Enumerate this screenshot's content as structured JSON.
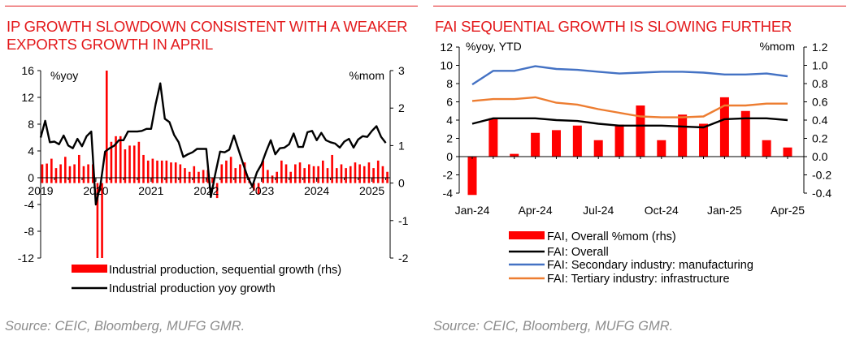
{
  "colors": {
    "accent": "#e31a1c",
    "bar": "#ff0000",
    "line_black": "#000000",
    "line_blue": "#4472c4",
    "line_orange": "#ed7d31",
    "source_gray": "#8c8c8c"
  },
  "left_panel": {
    "title": "IP GROWTH SLOWDOWN CONSISTENT WITH A WEAKER EXPORTS GROWTH IN APRIL",
    "source": "Source: CEIC, Bloomberg, MUFG GMR."
  },
  "right_panel": {
    "title": "FAI SEQUENTIAL GROWTH IS SLOWING FURTHER",
    "source": "Source: CEIC, Bloomberg, MUFG GMR."
  },
  "chart_data": [
    {
      "type": "bar+line",
      "title": "IP GROWTH SLOWDOWN CONSISTENT WITH A WEAKER EXPORTS GROWTH IN APRIL",
      "left_axis_label": "%yoy",
      "right_axis_label": "%mom",
      "ylim_left": [
        -12,
        16
      ],
      "yticks_left": [
        "-12",
        "-8",
        "-4",
        "0",
        "4",
        "8",
        "12",
        "16"
      ],
      "ylim_right": [
        -2,
        3
      ],
      "yticks_right": [
        "-2",
        "-1",
        "0",
        "1",
        "2",
        "3"
      ],
      "xlim": [
        2019.0,
        2025.33
      ],
      "year_ticks": [
        "2019",
        "2020",
        "2021",
        "2022",
        "2023",
        "2024",
        "2025"
      ],
      "grid": false,
      "legend_position": "bottom",
      "bar_series": {
        "name": "Industrial production, sequential growth (rhs)",
        "axis": "right",
        "x": [
          2019.0,
          2019.083,
          2019.167,
          2019.25,
          2019.333,
          2019.417,
          2019.5,
          2019.583,
          2019.667,
          2019.75,
          2019.833,
          2019.917,
          2020.0,
          2020.083,
          2020.167,
          2020.25,
          2020.333,
          2020.417,
          2020.5,
          2020.583,
          2020.667,
          2020.75,
          2020.833,
          2020.917,
          2021.0,
          2021.083,
          2021.167,
          2021.25,
          2021.333,
          2021.417,
          2021.5,
          2021.583,
          2021.667,
          2021.75,
          2021.833,
          2021.917,
          2022.0,
          2022.083,
          2022.167,
          2022.25,
          2022.333,
          2022.417,
          2022.5,
          2022.583,
          2022.667,
          2022.75,
          2022.833,
          2022.917,
          2023.0,
          2023.083,
          2023.167,
          2023.25,
          2023.333,
          2023.417,
          2023.5,
          2023.583,
          2023.667,
          2023.75,
          2023.833,
          2023.917,
          2024.0,
          2024.083,
          2024.167,
          2024.25,
          2024.333,
          2024.417,
          2024.5,
          2024.583,
          2024.667,
          2024.75,
          2024.833,
          2024.917,
          2025.0,
          2025.083,
          2025.167,
          2025.25
        ],
        "values": [
          0.5,
          0.52,
          0.65,
          0.4,
          0.5,
          0.7,
          0.45,
          0.5,
          0.75,
          0.45,
          0.5,
          0.5,
          -2.0,
          -2.0,
          3.0,
          1.1,
          1.25,
          1.25,
          0.9,
          1.0,
          1.0,
          1.1,
          0.75,
          0.6,
          0.65,
          0.6,
          0.6,
          0.6,
          0.55,
          0.55,
          0.5,
          0.4,
          0.3,
          0.45,
          0.3,
          0.35,
          0.35,
          0.15,
          -0.4,
          0.5,
          0.6,
          0.7,
          0.4,
          0.5,
          0.55,
          0.15,
          -0.2,
          -0.3,
          0.6,
          0.35,
          0.2,
          0.3,
          0.6,
          0.5,
          0.3,
          0.5,
          0.55,
          0.4,
          0.5,
          0.45,
          0.45,
          0.6,
          0.4,
          0.75,
          0.4,
          0.5,
          0.4,
          0.45,
          0.55,
          0.5,
          0.45,
          0.55,
          0.4,
          0.6,
          0.45,
          0.3
        ]
      },
      "line_series": {
        "name": "Industrial production yoy growth",
        "axis": "left",
        "x": [
          2019.0,
          2019.083,
          2019.167,
          2019.25,
          2019.333,
          2019.417,
          2019.5,
          2019.583,
          2019.667,
          2019.75,
          2019.833,
          2019.917,
          2020.0,
          2020.083,
          2020.167,
          2020.25,
          2020.333,
          2020.417,
          2020.5,
          2020.583,
          2020.667,
          2020.75,
          2020.833,
          2020.917,
          2021.0,
          2021.083,
          2021.167,
          2021.25,
          2021.333,
          2021.417,
          2021.5,
          2021.583,
          2021.667,
          2021.75,
          2021.833,
          2021.917,
          2022.0,
          2022.083,
          2022.167,
          2022.25,
          2022.333,
          2022.417,
          2022.5,
          2022.583,
          2022.667,
          2022.75,
          2022.833,
          2022.917,
          2023.0,
          2023.083,
          2023.167,
          2023.25,
          2023.333,
          2023.417,
          2023.5,
          2023.583,
          2023.667,
          2023.75,
          2023.833,
          2023.917,
          2024.0,
          2024.083,
          2024.167,
          2024.25,
          2024.333,
          2024.417,
          2024.5,
          2024.583,
          2024.667,
          2024.75,
          2024.833,
          2024.917,
          2025.0,
          2025.083,
          2025.167,
          2025.25
        ],
        "values": [
          6.0,
          8.5,
          5.3,
          5.4,
          5.0,
          6.3,
          4.8,
          4.4,
          5.8,
          4.7,
          6.2,
          6.9,
          -4.0,
          -1.1,
          3.9,
          4.4,
          4.8,
          5.6,
          5.6,
          6.9,
          6.9,
          6.9,
          7.0,
          7.3,
          7.3,
          11.0,
          14.1,
          8.8,
          8.3,
          6.4,
          5.3,
          3.1,
          3.5,
          3.8,
          4.3,
          4.3,
          4.3,
          -2.9,
          0.7,
          3.9,
          3.8,
          4.2,
          6.3,
          4.2,
          2.1,
          0.1,
          -1.3,
          0.8,
          2.0,
          3.9,
          5.6,
          3.5,
          4.4,
          4.5,
          5.0,
          6.6,
          4.6,
          4.6,
          6.8,
          7.0,
          5.6,
          6.7,
          5.6,
          5.3,
          5.1,
          4.5,
          5.4,
          5.8,
          4.5,
          5.7,
          6.2,
          6.1,
          7.0,
          7.7,
          6.1,
          5.2
        ]
      }
    },
    {
      "type": "bar+line",
      "title": "FAI SEQUENTIAL GROWTH IS SLOWING FURTHER",
      "left_axis_label": "%yoy,  YTD",
      "right_axis_label": "%mom",
      "ylim_left": [
        -4,
        12
      ],
      "yticks_left": [
        "-4",
        "-2",
        "0",
        "2",
        "4",
        "6",
        "8",
        "10",
        "12"
      ],
      "ylim_right": [
        -0.4,
        1.2
      ],
      "yticks_right": [
        "-0.4",
        "-0.2",
        "0.0",
        "0.2",
        "0.4",
        "0.6",
        "0.8",
        "1.0",
        "1.2"
      ],
      "categories": [
        "Jan-24",
        "Feb-24",
        "Mar-24",
        "Apr-24",
        "May-24",
        "Jun-24",
        "Jul-24",
        "Aug-24",
        "Sep-24",
        "Oct-24",
        "Nov-24",
        "Dec-24",
        "Jan-25",
        "Feb-25",
        "Mar-25",
        "Apr-25"
      ],
      "x_tick_labels": [
        "Jan-24",
        "Apr-24",
        "Jul-24",
        "Oct-24",
        "Jan-25",
        "Apr-25"
      ],
      "grid": false,
      "legend_position": "bottom",
      "bar_series": {
        "name": "FAI, Overall %mom (rhs)",
        "axis": "right",
        "values": [
          -0.42,
          0.42,
          0.03,
          0.26,
          0.29,
          0.34,
          0.18,
          0.35,
          0.56,
          0.18,
          0.46,
          0.36,
          0.65,
          0.5,
          0.18,
          0.1
        ]
      },
      "series": [
        {
          "name": "FAI: Overall",
          "axis": "left",
          "color": "#000000",
          "values": [
            3.6,
            4.2,
            4.2,
            4.2,
            4.0,
            3.9,
            3.6,
            3.4,
            3.4,
            3.4,
            3.3,
            3.2,
            4.1,
            4.2,
            4.2,
            4.0
          ]
        },
        {
          "name": "FAI: Secondary industry: manufacturing",
          "axis": "left",
          "color": "#4472c4",
          "values": [
            7.9,
            9.4,
            9.4,
            9.9,
            9.6,
            9.5,
            9.3,
            9.1,
            9.2,
            9.3,
            9.3,
            9.2,
            9.0,
            9.0,
            9.1,
            8.8
          ]
        },
        {
          "name": "FAI: Tertiary industry: infrastructure",
          "axis": "left",
          "color": "#ed7d31",
          "values": [
            6.1,
            6.3,
            6.3,
            6.5,
            5.9,
            5.7,
            5.2,
            4.8,
            4.4,
            4.3,
            4.3,
            4.4,
            5.6,
            5.6,
            5.8,
            5.8
          ]
        }
      ]
    }
  ]
}
